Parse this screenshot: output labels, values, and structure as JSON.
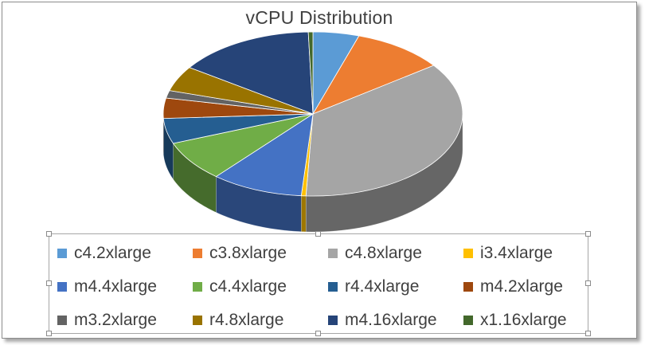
{
  "chart_data": {
    "type": "pie",
    "style": "3d",
    "title": "vCPU Distribution",
    "legend_position": "bottom",
    "slices": [
      {
        "label": "c4.2xlarge",
        "value": 5,
        "color": "#5b9bd5"
      },
      {
        "label": "c3.8xlarge",
        "value": 10,
        "color": "#ed7d31"
      },
      {
        "label": "c4.8xlarge",
        "value": 36,
        "color": "#a5a5a5"
      },
      {
        "label": "i3.4xlarge",
        "value": 0.5,
        "color": "#ffc000"
      },
      {
        "label": "m4.4xlarge",
        "value": 10,
        "color": "#4472c4"
      },
      {
        "label": "c4.4xlarge",
        "value": 8,
        "color": "#70ad47"
      },
      {
        "label": "r4.4xlarge",
        "value": 5,
        "color": "#255e91"
      },
      {
        "label": "m4.2xlarge",
        "value": 4,
        "color": "#9e480e"
      },
      {
        "label": "m3.2xlarge",
        "value": 1.5,
        "color": "#636363"
      },
      {
        "label": "r4.8xlarge",
        "value": 5,
        "color": "#997300"
      },
      {
        "label": "m4.16xlarge",
        "value": 15,
        "color": "#264478"
      },
      {
        "label": "x1.16xlarge",
        "value": 0.5,
        "color": "#43682b"
      }
    ]
  }
}
